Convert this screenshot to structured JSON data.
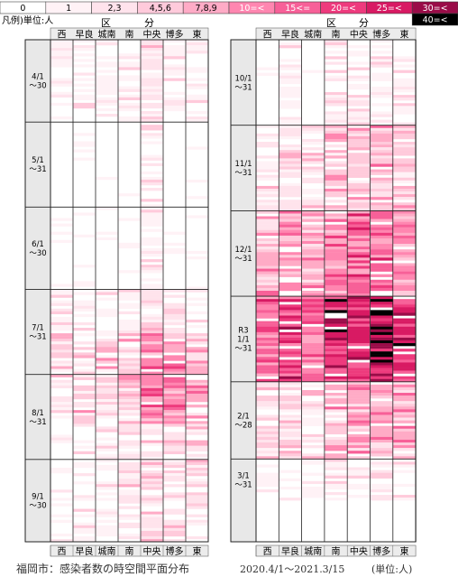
{
  "legend": {
    "prefix": "凡例)単位:人",
    "items": [
      {
        "label": "0",
        "color": "#ffffff",
        "text_color": "#000000"
      },
      {
        "label": "1",
        "color": "#fff2f6",
        "text_color": "#000000"
      },
      {
        "label": "2,3",
        "color": "#ffe3ec",
        "text_color": "#000000"
      },
      {
        "label": "4,5,6",
        "color": "#ffcadb",
        "text_color": "#000000"
      },
      {
        "label": "7,8,9",
        "color": "#ffabc6",
        "text_color": "#000000"
      },
      {
        "label": "10=<",
        "color": "#ff86b0",
        "text_color": "#ffffff"
      },
      {
        "label": "15<=",
        "color": "#f76098",
        "text_color": "#ffffff"
      },
      {
        "label": "20=<",
        "color": "#ee3a7d",
        "text_color": "#ffffff"
      },
      {
        "label": "25=<",
        "color": "#d81a63",
        "text_color": "#ffffff"
      },
      {
        "label": "30=<",
        "color": "#9a0c48",
        "text_color": "#ffffff"
      },
      {
        "label": "40=<",
        "color": "#000000",
        "text_color": "#ffffff"
      }
    ]
  },
  "chart_data": {
    "type": "heatmap",
    "header_label_left": "区",
    "header_label_right": "分",
    "wards": [
      "西",
      "早良",
      "城南",
      "南",
      "中央",
      "博多",
      "東"
    ],
    "panels": [
      {
        "id": "left",
        "start": "2020-04-01",
        "end": "2020-09-30",
        "months": [
          {
            "label": "4/1\n〜30",
            "days": 30
          },
          {
            "label": "5/1\n〜31",
            "days": 31
          },
          {
            "label": "6/1\n〜30",
            "days": 30
          },
          {
            "label": "7/1\n〜31",
            "days": 31
          },
          {
            "label": "8/1\n〜31",
            "days": 31
          },
          {
            "label": "9/1\n〜30",
            "days": 30
          }
        ]
      },
      {
        "id": "right",
        "start": "2020-10-01",
        "end": "2021-03-15",
        "months": [
          {
            "label": "10/1\n〜31",
            "days": 31
          },
          {
            "label": "11/1\n〜31",
            "days": 31
          },
          {
            "label": "12/1\n〜31",
            "days": 31
          },
          {
            "label": "R3\n1/1\n〜31",
            "days": 31
          },
          {
            "label": "2/1\n〜28",
            "days": 28
          },
          {
            "label": "3/1\n〜31",
            "days": 15
          }
        ]
      }
    ],
    "levels": [
      "0",
      "1",
      "2,3",
      "4,5,6",
      "7,8,9",
      "10=<",
      "15<=",
      "20=<",
      "25=<",
      "30=<",
      "40=<"
    ],
    "wave_profile": [
      {
        "panel": "left",
        "from_day": 1,
        "to_day": 30,
        "level": [
          1,
          1,
          1,
          1,
          2,
          1,
          1
        ]
      },
      {
        "panel": "left",
        "from_day": 31,
        "to_day": 91,
        "level": [
          0,
          0,
          0,
          0,
          1,
          0,
          0
        ]
      },
      {
        "panel": "left",
        "from_day": 92,
        "to_day": 107,
        "level": [
          1,
          1,
          1,
          1,
          2,
          2,
          1
        ]
      },
      {
        "panel": "left",
        "from_day": 108,
        "to_day": 140,
        "level": [
          2,
          3,
          3,
          3,
          5,
          5,
          4
        ]
      },
      {
        "panel": "left",
        "from_day": 141,
        "to_day": 183,
        "level": [
          1,
          1,
          1,
          2,
          2,
          2,
          2
        ]
      },
      {
        "panel": "right",
        "from_day": 1,
        "to_day": 31,
        "level": [
          0,
          1,
          0,
          1,
          1,
          1,
          1
        ]
      },
      {
        "panel": "right",
        "from_day": 32,
        "to_day": 62,
        "level": [
          2,
          2,
          2,
          3,
          3,
          4,
          3
        ]
      },
      {
        "panel": "right",
        "from_day": 63,
        "to_day": 93,
        "level": [
          4,
          5,
          4,
          5,
          6,
          6,
          5
        ]
      },
      {
        "panel": "right",
        "from_day": 94,
        "to_day": 124,
        "level": [
          6,
          7,
          6,
          8,
          8,
          9,
          8
        ]
      },
      {
        "panel": "right",
        "from_day": 125,
        "to_day": 152,
        "level": [
          2,
          3,
          2,
          4,
          4,
          4,
          4
        ]
      },
      {
        "panel": "right",
        "from_day": 153,
        "to_day": 167,
        "level": [
          1,
          1,
          1,
          1,
          1,
          2,
          1
        ]
      }
    ]
  },
  "footer": {
    "title": "福岡市：感染者数の時空間平面分布",
    "period": "2020.4/1〜2021.3/15",
    "unit": "(単位:人)"
  }
}
